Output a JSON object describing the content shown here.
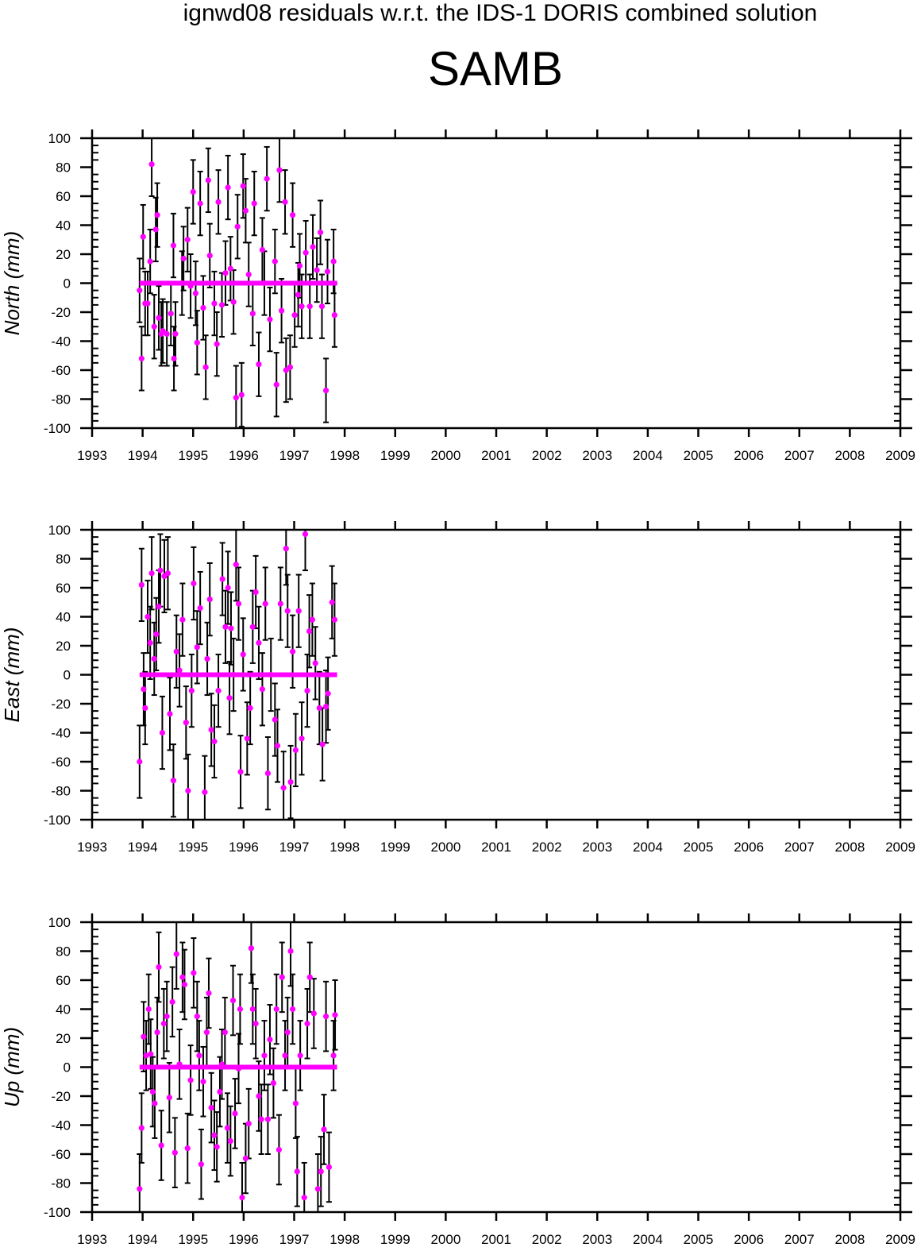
{
  "title": "ignwd08 residuals w.r.t. the IDS-1 DORIS combined solution",
  "station": "SAMB",
  "colors": {
    "points": "#ff00ff",
    "error_bars": "#000000",
    "reference_line": "#ff00ff",
    "axes": "#000000"
  },
  "chart_data": [
    {
      "type": "scatter",
      "ylabel": "North (mm)",
      "xlim": [
        1993,
        2009
      ],
      "ylim": [
        -100,
        100
      ],
      "x_ticks": [
        "1993",
        "1994",
        "1995",
        "1996",
        "1997",
        "1998",
        "1999",
        "2000",
        "2001",
        "2002",
        "2003",
        "2004",
        "2005",
        "2006",
        "2007",
        "2008",
        "2009"
      ],
      "y_ticks": [
        "100",
        "80",
        "60",
        "40",
        "20",
        "0",
        "-20",
        "-40",
        "-60",
        "-80",
        "-100"
      ],
      "grid": false,
      "error_bar_mm": 22,
      "reference_line": {
        "y": 0,
        "x_range": [
          1993.94,
          1997.85
        ]
      },
      "points": [
        [
          1993.94,
          -5
        ],
        [
          1993.98,
          -52
        ],
        [
          1994.01,
          32
        ],
        [
          1994.05,
          -14
        ],
        [
          1994.1,
          -14
        ],
        [
          1994.15,
          15
        ],
        [
          1994.18,
          82
        ],
        [
          1994.23,
          -30
        ],
        [
          1994.26,
          37
        ],
        [
          1994.29,
          47
        ],
        [
          1994.32,
          -24
        ],
        [
          1994.37,
          -35
        ],
        [
          1994.4,
          -33
        ],
        [
          1994.48,
          -35
        ],
        [
          1994.56,
          -21
        ],
        [
          1994.61,
          26
        ],
        [
          1994.62,
          -52
        ],
        [
          1994.65,
          -35
        ],
        [
          1994.78,
          0
        ],
        [
          1994.81,
          17
        ],
        [
          1994.89,
          30
        ],
        [
          1994.95,
          -2
        ],
        [
          1995.0,
          63
        ],
        [
          1995.05,
          -7
        ],
        [
          1995.08,
          -41
        ],
        [
          1995.14,
          55
        ],
        [
          1995.2,
          -17
        ],
        [
          1995.25,
          -58
        ],
        [
          1995.3,
          71
        ],
        [
          1995.33,
          19
        ],
        [
          1995.42,
          -14
        ],
        [
          1995.47,
          -42
        ],
        [
          1995.5,
          56
        ],
        [
          1995.57,
          -15
        ],
        [
          1995.64,
          7
        ],
        [
          1995.69,
          66
        ],
        [
          1995.74,
          10
        ],
        [
          1995.8,
          -13
        ],
        [
          1995.85,
          -79
        ],
        [
          1995.88,
          39
        ],
        [
          1995.96,
          -77
        ],
        [
          1995.99,
          67
        ],
        [
          1996.04,
          50
        ],
        [
          1996.1,
          6
        ],
        [
          1996.18,
          -21
        ],
        [
          1996.21,
          55
        ],
        [
          1996.3,
          -56
        ],
        [
          1996.37,
          23
        ],
        [
          1996.41,
          0
        ],
        [
          1996.46,
          72
        ],
        [
          1996.52,
          -25
        ],
        [
          1996.62,
          15
        ],
        [
          1996.65,
          -70
        ],
        [
          1996.71,
          78
        ],
        [
          1996.75,
          -19
        ],
        [
          1996.82,
          56
        ],
        [
          1996.84,
          -60
        ],
        [
          1996.92,
          -58
        ],
        [
          1996.97,
          47
        ],
        [
          1997.01,
          -22
        ],
        [
          1997.08,
          -8
        ],
        [
          1997.11,
          12
        ],
        [
          1997.15,
          -16
        ],
        [
          1997.23,
          21
        ],
        [
          1997.31,
          -16
        ],
        [
          1997.37,
          25
        ],
        [
          1997.45,
          9
        ],
        [
          1997.52,
          35
        ],
        [
          1997.55,
          -16
        ],
        [
          1997.63,
          -74
        ],
        [
          1997.66,
          8
        ],
        [
          1997.78,
          15
        ],
        [
          1997.8,
          -22
        ]
      ]
    },
    {
      "type": "scatter",
      "ylabel": "East (mm)",
      "xlim": [
        1993,
        2009
      ],
      "ylim": [
        -100,
        100
      ],
      "x_ticks": [
        "1993",
        "1994",
        "1995",
        "1996",
        "1997",
        "1998",
        "1999",
        "2000",
        "2001",
        "2002",
        "2003",
        "2004",
        "2005",
        "2006",
        "2007",
        "2008",
        "2009"
      ],
      "y_ticks": [
        "100",
        "80",
        "60",
        "40",
        "20",
        "0",
        "-20",
        "-40",
        "-60",
        "-80",
        "-100"
      ],
      "grid": false,
      "error_bar_mm": 25,
      "reference_line": {
        "y": 0,
        "x_range": [
          1993.94,
          1997.85
        ]
      },
      "points": [
        [
          1993.94,
          -60
        ],
        [
          1993.98,
          62
        ],
        [
          1994.02,
          -10
        ],
        [
          1994.05,
          -23
        ],
        [
          1994.1,
          40
        ],
        [
          1994.15,
          22
        ],
        [
          1994.18,
          70
        ],
        [
          1994.23,
          11
        ],
        [
          1994.27,
          28
        ],
        [
          1994.32,
          47
        ],
        [
          1994.35,
          72
        ],
        [
          1994.39,
          -40
        ],
        [
          1994.43,
          68
        ],
        [
          1994.5,
          70
        ],
        [
          1994.54,
          -27
        ],
        [
          1994.61,
          -73
        ],
        [
          1994.67,
          16
        ],
        [
          1994.73,
          3
        ],
        [
          1994.79,
          38
        ],
        [
          1994.86,
          -33
        ],
        [
          1994.9,
          -80
        ],
        [
          1994.97,
          -11
        ],
        [
          1995.01,
          63
        ],
        [
          1995.08,
          19
        ],
        [
          1995.14,
          46
        ],
        [
          1995.23,
          -81
        ],
        [
          1995.28,
          11
        ],
        [
          1995.33,
          52
        ],
        [
          1995.36,
          -38
        ],
        [
          1995.42,
          -46
        ],
        [
          1995.5,
          -11
        ],
        [
          1995.58,
          66
        ],
        [
          1995.64,
          33
        ],
        [
          1995.69,
          60
        ],
        [
          1995.72,
          -16
        ],
        [
          1995.75,
          32
        ],
        [
          1995.8,
          0
        ],
        [
          1995.85,
          76
        ],
        [
          1995.9,
          49
        ],
        [
          1995.94,
          -67
        ],
        [
          1995.99,
          14
        ],
        [
          1996.07,
          -44
        ],
        [
          1996.13,
          -23
        ],
        [
          1996.18,
          33
        ],
        [
          1996.24,
          57
        ],
        [
          1996.3,
          22
        ],
        [
          1996.37,
          -10
        ],
        [
          1996.43,
          49
        ],
        [
          1996.48,
          -68
        ],
        [
          1996.54,
          0
        ],
        [
          1996.62,
          -31
        ],
        [
          1996.67,
          -49
        ],
        [
          1996.73,
          49
        ],
        [
          1996.79,
          -78
        ],
        [
          1996.84,
          87
        ],
        [
          1996.87,
          44
        ],
        [
          1996.93,
          -74
        ],
        [
          1996.97,
          16
        ],
        [
          1997.03,
          -52
        ],
        [
          1997.09,
          44
        ],
        [
          1997.15,
          -44
        ],
        [
          1997.22,
          97
        ],
        [
          1997.26,
          -11
        ],
        [
          1997.3,
          30
        ],
        [
          1997.36,
          38
        ],
        [
          1997.42,
          8
        ],
        [
          1997.5,
          -23
        ],
        [
          1997.56,
          -48
        ],
        [
          1997.63,
          -22
        ],
        [
          1997.67,
          -13
        ],
        [
          1997.75,
          50
        ],
        [
          1997.8,
          38
        ]
      ]
    },
    {
      "type": "scatter",
      "ylabel": "Up (mm)",
      "xlim": [
        1993,
        2009
      ],
      "ylim": [
        -100,
        100
      ],
      "x_ticks": [
        "1993",
        "1994",
        "1995",
        "1996",
        "1997",
        "1998",
        "1999",
        "2000",
        "2001",
        "2002",
        "2003",
        "2004",
        "2005",
        "2006",
        "2007",
        "2008",
        "2009"
      ],
      "y_ticks": [
        "100",
        "80",
        "60",
        "40",
        "20",
        "0",
        "-20",
        "-40",
        "-60",
        "-80",
        "-100"
      ],
      "grid": false,
      "error_bar_mm": 24,
      "reference_line": {
        "y": 0,
        "x_range": [
          1993.94,
          1997.85
        ]
      },
      "points": [
        [
          1993.94,
          -84
        ],
        [
          1993.98,
          -42
        ],
        [
          1994.02,
          21
        ],
        [
          1994.07,
          8
        ],
        [
          1994.12,
          40
        ],
        [
          1994.16,
          9
        ],
        [
          1994.2,
          -17
        ],
        [
          1994.24,
          -25
        ],
        [
          1994.29,
          24
        ],
        [
          1994.32,
          69
        ],
        [
          1994.37,
          -54
        ],
        [
          1994.42,
          30
        ],
        [
          1994.48,
          35
        ],
        [
          1994.53,
          -21
        ],
        [
          1994.59,
          45
        ],
        [
          1994.64,
          -59
        ],
        [
          1994.67,
          78
        ],
        [
          1994.73,
          2
        ],
        [
          1994.79,
          62
        ],
        [
          1994.83,
          57
        ],
        [
          1994.89,
          -56
        ],
        [
          1994.95,
          -9
        ],
        [
          1995.01,
          65
        ],
        [
          1995.08,
          35
        ],
        [
          1995.12,
          8
        ],
        [
          1995.16,
          -67
        ],
        [
          1995.2,
          -10
        ],
        [
          1995.27,
          24
        ],
        [
          1995.31,
          51
        ],
        [
          1995.36,
          -28
        ],
        [
          1995.42,
          -47
        ],
        [
          1995.47,
          -55
        ],
        [
          1995.53,
          -17
        ],
        [
          1995.57,
          2
        ],
        [
          1995.63,
          24
        ],
        [
          1995.68,
          -42
        ],
        [
          1995.74,
          -51
        ],
        [
          1995.79,
          46
        ],
        [
          1995.83,
          -32
        ],
        [
          1995.9,
          -1
        ],
        [
          1995.93,
          40
        ],
        [
          1995.97,
          -90
        ],
        [
          1996.04,
          -63
        ],
        [
          1996.1,
          -39
        ],
        [
          1996.15,
          82
        ],
        [
          1996.18,
          40
        ],
        [
          1996.24,
          30
        ],
        [
          1996.3,
          -20
        ],
        [
          1996.35,
          -36
        ],
        [
          1996.41,
          8
        ],
        [
          1996.48,
          -36
        ],
        [
          1996.52,
          19
        ],
        [
          1996.59,
          -11
        ],
        [
          1996.65,
          40
        ],
        [
          1996.7,
          -57
        ],
        [
          1996.76,
          62
        ],
        [
          1996.82,
          8
        ],
        [
          1996.87,
          24
        ],
        [
          1996.93,
          80
        ],
        [
          1996.97,
          40
        ],
        [
          1997.03,
          -25
        ],
        [
          1997.06,
          -72
        ],
        [
          1997.12,
          8
        ],
        [
          1997.2,
          -90
        ],
        [
          1997.26,
          30
        ],
        [
          1997.31,
          62
        ],
        [
          1997.39,
          37
        ],
        [
          1997.47,
          -84
        ],
        [
          1997.53,
          -72
        ],
        [
          1997.59,
          -43
        ],
        [
          1997.63,
          35
        ],
        [
          1997.69,
          -69
        ],
        [
          1997.78,
          8
        ],
        [
          1997.81,
          36
        ]
      ]
    }
  ]
}
